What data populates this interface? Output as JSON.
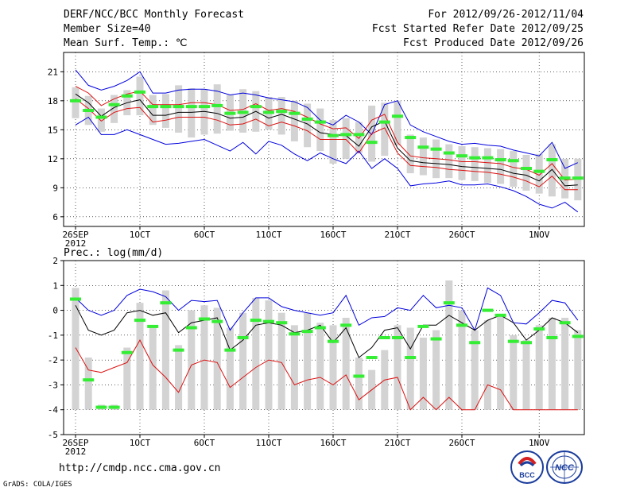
{
  "header": {
    "title": "DERF/NCC/BCC Monthly Forecast",
    "member_size": "Member Size=40",
    "variable": "Mean Surf. Temp.: ℃",
    "period": "For 2012/09/26-2012/11/04",
    "started": "Fcst Started Refer Date 2012/09/25",
    "produced": "Fcst Produced Date 2012/09/26"
  },
  "footer": {
    "url": "http://cmdp.ncc.cma.gov.cn",
    "credit": "GrADS: COLA/IGES",
    "logo_left_text": "BCC",
    "logo_right_text": "NCC"
  },
  "colors": {
    "box": "#d3d3d3",
    "median": "#33ee33",
    "mean": "#000000",
    "spread": "#dd1111",
    "extreme": "#0000dd",
    "grid": "#000000"
  },
  "chart_data": [
    {
      "type": "box",
      "title": "Mean Surf. Temp.: ℃",
      "xlabel": "",
      "ylabel": "",
      "ylim": [
        5,
        23
      ],
      "yticks": [
        6,
        9,
        12,
        15,
        18,
        21
      ],
      "x_tick_labels": [
        {
          "day": 0,
          "label": "26SEP"
        },
        {
          "day": 5,
          "label": "1OCT"
        },
        {
          "day": 10,
          "label": "6OCT"
        },
        {
          "day": 15,
          "label": "11OCT"
        },
        {
          "day": 20,
          "label": "16OCT"
        },
        {
          "day": 25,
          "label": "21OCT"
        },
        {
          "day": 30,
          "label": "26OCT"
        },
        {
          "day": 36,
          "label": "1NOV"
        }
      ],
      "year_label": "2012",
      "days": 40,
      "box_low": [
        16.2,
        15.5,
        14.8,
        15.7,
        16.5,
        16.5,
        15.5,
        15.2,
        14.7,
        14.2,
        14.5,
        14.6,
        14.9,
        14.7,
        14.8,
        15.0,
        14.5,
        13.8,
        13.2,
        12.8,
        11.5,
        12.0,
        12.6,
        11.7,
        12.3,
        13.4,
        10.5,
        10.3,
        10.0,
        10.0,
        9.8,
        9.7,
        9.5,
        9.4,
        9.1,
        8.7,
        8.4,
        8.1,
        7.9,
        7.7
      ],
      "box_high": [
        19.4,
        18.5,
        17.2,
        18.6,
        19.1,
        20.5,
        18.6,
        18.7,
        19.6,
        19.3,
        19.2,
        19.7,
        18.6,
        19.2,
        19.0,
        18.4,
        18.4,
        18.0,
        17.7,
        17.2,
        16.0,
        16.2,
        15.8,
        17.5,
        17.8,
        18.0,
        14.5,
        14.2,
        14.0,
        13.5,
        13.3,
        13.2,
        13.1,
        13.0,
        12.8,
        12.4,
        12.5,
        13.5,
        12.0,
        12.0
      ],
      "median": [
        18.0,
        17.0,
        16.3,
        17.6,
        18.5,
        18.9,
        17.4,
        17.4,
        17.4,
        17.4,
        17.4,
        17.5,
        16.7,
        16.8,
        17.4,
        16.8,
        16.9,
        16.7,
        16.1,
        15.8,
        14.4,
        14.5,
        14.5,
        13.7,
        15.8,
        16.4,
        14.2,
        13.2,
        13.0,
        12.6,
        12.3,
        12.1,
        12.1,
        11.9,
        11.8,
        11.0,
        10.7,
        11.9,
        10.0,
        10.0
      ],
      "series": [
        {
          "name": "ensemble max",
          "role": "extreme",
          "values": [
            21.2,
            19.6,
            19.1,
            19.5,
            20.1,
            21.0,
            18.8,
            18.8,
            19.1,
            19.2,
            19.2,
            19.0,
            18.6,
            18.8,
            18.6,
            18.3,
            18.1,
            17.9,
            17.3,
            16.0,
            15.5,
            16.5,
            15.8,
            14.5,
            17.6,
            18.0,
            15.5,
            14.8,
            14.3,
            13.8,
            13.5,
            13.6,
            13.4,
            13.3,
            12.9,
            12.6,
            12.3,
            13.7,
            11.0,
            11.6
          ]
        },
        {
          "name": "mean + spread",
          "role": "spread",
          "values": [
            19.5,
            18.8,
            17.5,
            18.2,
            18.7,
            19.0,
            17.6,
            17.6,
            17.6,
            17.8,
            17.8,
            17.6,
            17.0,
            17.1,
            17.7,
            17.0,
            17.2,
            16.9,
            16.3,
            15.6,
            15.1,
            15.2,
            14.1,
            16.0,
            16.6,
            13.7,
            12.3,
            12.1,
            12.0,
            11.9,
            11.7,
            11.7,
            11.6,
            11.5,
            11.1,
            10.9,
            10.3,
            11.5,
            9.8,
            9.9
          ]
        },
        {
          "name": "ensemble mean",
          "role": "mean",
          "values": [
            18.7,
            17.8,
            16.4,
            17.3,
            17.8,
            18.1,
            16.5,
            16.5,
            16.8,
            16.8,
            16.9,
            16.7,
            16.2,
            16.3,
            16.9,
            16.2,
            16.6,
            16.1,
            15.6,
            14.7,
            14.5,
            14.4,
            13.3,
            15.3,
            15.9,
            13.1,
            11.8,
            11.6,
            11.5,
            11.4,
            11.2,
            11.1,
            11.0,
            10.9,
            10.5,
            10.3,
            9.7,
            10.9,
            9.2,
            9.3
          ]
        },
        {
          "name": "mean - spread",
          "role": "spread",
          "values": [
            18.2,
            17.2,
            15.9,
            16.8,
            17.2,
            17.3,
            15.8,
            16.0,
            16.3,
            16.3,
            16.3,
            16.0,
            15.5,
            15.6,
            16.1,
            15.4,
            15.8,
            15.4,
            14.9,
            14.0,
            14.0,
            14.0,
            12.6,
            14.6,
            15.2,
            12.6,
            11.3,
            11.2,
            11.1,
            10.9,
            10.8,
            10.7,
            10.6,
            10.4,
            10.1,
            9.7,
            9.1,
            10.2,
            8.8,
            8.8
          ]
        },
        {
          "name": "ensemble min",
          "role": "extreme",
          "values": [
            15.5,
            16.3,
            14.5,
            14.5,
            15.0,
            14.5,
            14.0,
            13.5,
            13.6,
            13.8,
            14.0,
            13.4,
            12.8,
            13.7,
            12.5,
            13.8,
            13.4,
            12.5,
            11.8,
            12.6,
            12.0,
            11.5,
            12.8,
            11.0,
            12.0,
            11.0,
            9.2,
            9.4,
            9.5,
            9.7,
            9.3,
            9.3,
            9.4,
            9.1,
            8.7,
            8.1,
            7.3,
            6.9,
            7.5,
            6.5
          ]
        }
      ]
    },
    {
      "type": "box",
      "title": "Prec.: log(mm/d)",
      "xlabel": "",
      "ylabel": "",
      "ylim": [
        -5,
        2
      ],
      "yticks": [
        -5,
        -4,
        -3,
        -2,
        -1,
        0,
        1,
        2
      ],
      "x_tick_labels": [
        {
          "day": 0,
          "label": "26SEP"
        },
        {
          "day": 5,
          "label": "1OCT"
        },
        {
          "day": 10,
          "label": "6OCT"
        },
        {
          "day": 15,
          "label": "11OCT"
        },
        {
          "day": 20,
          "label": "16OCT"
        },
        {
          "day": 25,
          "label": "21OCT"
        },
        {
          "day": 30,
          "label": "26OCT"
        },
        {
          "day": 36,
          "label": "1NOV"
        }
      ],
      "year_label": "2012",
      "days": 40,
      "box_low": [
        -4,
        -4,
        -4,
        -4,
        -4,
        -4,
        -4,
        -4,
        -4,
        -4,
        -4,
        -4,
        -4,
        -4,
        -4,
        -4,
        -4,
        -4,
        -4,
        -4,
        -4,
        -4,
        -4,
        -4,
        -4,
        -4,
        -4,
        -4,
        -4,
        -4,
        -4,
        -4,
        -4,
        -4,
        -4,
        -4,
        -4,
        -4,
        -4,
        -4
      ],
      "box_high": [
        0.9,
        -1.9,
        -3.8,
        -3.8,
        -1.5,
        0.3,
        -0.7,
        0.8,
        -1.4,
        0.0,
        0.2,
        0.1,
        -0.7,
        -0.1,
        0.5,
        0.4,
        -0.1,
        -0.6,
        -0.1,
        -0.5,
        -0.6,
        -0.3,
        -1.9,
        -2.4,
        -1.6,
        -0.6,
        -0.7,
        -1.1,
        -0.8,
        1.2,
        0.0,
        -0.8,
        -0.4,
        -0.2,
        -1.0,
        -1.2,
        -0.6,
        -0.3,
        -0.3,
        -0.8
      ],
      "median": [
        0.45,
        -2.8,
        -3.9,
        -3.9,
        -1.7,
        -0.4,
        -0.65,
        0.3,
        -1.6,
        -0.7,
        -0.35,
        -0.45,
        -1.6,
        -1.1,
        -0.4,
        -0.45,
        -0.5,
        -0.95,
        -0.85,
        -0.7,
        -1.25,
        -0.6,
        -2.65,
        -1.9,
        -1.1,
        -1.1,
        -1.9,
        -0.65,
        -1.15,
        0.3,
        -0.6,
        -1.3,
        0.0,
        -0.2,
        -1.25,
        -1.3,
        -0.75,
        -1.1,
        -0.5,
        -1.05
      ],
      "series": [
        {
          "name": "ensemble max",
          "role": "extreme",
          "values": [
            0.5,
            0.0,
            -0.2,
            0.0,
            0.6,
            0.85,
            0.75,
            0.55,
            0.0,
            0.4,
            0.35,
            0.4,
            -0.8,
            -0.1,
            0.5,
            0.5,
            0.15,
            0.0,
            -0.1,
            -0.2,
            -0.1,
            0.6,
            -0.6,
            -0.3,
            -0.25,
            0.1,
            0.0,
            0.6,
            0.1,
            0.2,
            0.1,
            -0.8,
            0.9,
            0.6,
            -0.5,
            -0.55,
            -0.1,
            0.4,
            0.3,
            -0.4
          ]
        },
        {
          "name": "ensemble mean",
          "role": "mean",
          "values": [
            0.2,
            -0.8,
            -1.0,
            -0.8,
            -0.1,
            0.0,
            -0.2,
            -0.1,
            -0.9,
            -0.5,
            -0.4,
            -0.3,
            -1.6,
            -1.2,
            -0.6,
            -0.5,
            -0.6,
            -0.9,
            -0.8,
            -0.6,
            -1.3,
            -0.7,
            -1.9,
            -1.5,
            -0.8,
            -0.7,
            -1.55,
            -0.6,
            -0.6,
            -0.2,
            -0.5,
            -0.8,
            -0.4,
            -0.2,
            -0.5,
            -1.2,
            -0.8,
            -0.3,
            -0.5,
            -0.9
          ]
        },
        {
          "name": "ensemble min",
          "role": "spread",
          "values": [
            -1.5,
            -2.4,
            -2.5,
            -2.3,
            -2.1,
            -1.2,
            -2.2,
            -2.7,
            -3.3,
            -2.2,
            -2.0,
            -2.1,
            -3.1,
            -2.7,
            -2.3,
            -2.0,
            -2.1,
            -3.0,
            -2.8,
            -2.7,
            -3.0,
            -2.6,
            -3.6,
            -3.2,
            -2.8,
            -2.7,
            -4.0,
            -3.5,
            -4.0,
            -3.5,
            -4.0,
            -4.0,
            -3.0,
            -3.2,
            -4.0,
            -4.0,
            -4.0,
            -4.0,
            -4.0,
            -4.0
          ]
        }
      ]
    }
  ]
}
